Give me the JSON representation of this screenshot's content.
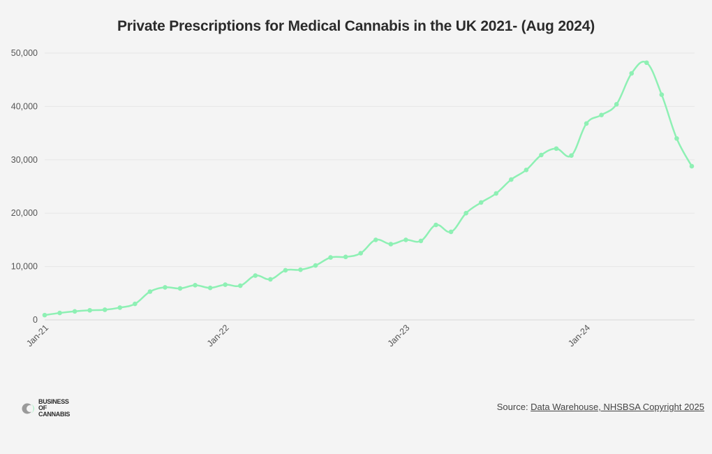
{
  "chart_data": {
    "type": "line",
    "title": "Private Prescriptions for Medical Cannabis in the UK 2021- (Aug 2024)",
    "xlabel": "",
    "ylabel": "",
    "ylim": [
      0,
      50000
    ],
    "yticks": [
      0,
      10000,
      20000,
      30000,
      40000,
      50000
    ],
    "ytick_labels": [
      "0",
      "10,000",
      "20,000",
      "30,000",
      "40,000",
      "50,000"
    ],
    "xtick_labels": [
      "Jan-21",
      "Jan-22",
      "Jan-23",
      "Jan-24"
    ],
    "xtick_indices": [
      0,
      12,
      24,
      36
    ],
    "series": [
      {
        "name": "Private Prescriptions",
        "color": "#8ef0b4",
        "categories": [
          "Jan-21",
          "Feb-21",
          "Mar-21",
          "Apr-21",
          "May-21",
          "Jun-21",
          "Jul-21",
          "Aug-21",
          "Sep-21",
          "Oct-21",
          "Nov-21",
          "Dec-21",
          "Jan-22",
          "Feb-22",
          "Mar-22",
          "Apr-22",
          "May-22",
          "Jun-22",
          "Jul-22",
          "Aug-22",
          "Sep-22",
          "Oct-22",
          "Nov-22",
          "Dec-22",
          "Jan-23",
          "Feb-23",
          "Mar-23",
          "Apr-23",
          "May-23",
          "Jun-23",
          "Jul-23",
          "Aug-23",
          "Sep-23",
          "Oct-23",
          "Nov-23",
          "Dec-23",
          "Jan-24",
          "Feb-24",
          "Mar-24",
          "Apr-24",
          "May-24",
          "Jun-24",
          "Jul-24",
          "Aug-24"
        ],
        "values": [
          900,
          1300,
          1600,
          1800,
          1900,
          2300,
          3000,
          5300,
          6100,
          5900,
          6500,
          6000,
          6600,
          6400,
          8300,
          7600,
          9300,
          9400,
          10200,
          11700,
          11800,
          12500,
          15000,
          14200,
          15000,
          14800,
          17800,
          16500,
          20000,
          22000,
          23700,
          26300,
          28100,
          30900,
          32100,
          30800,
          36800,
          38400,
          40400,
          46200,
          48200,
          42200,
          34000,
          28800
        ]
      }
    ]
  },
  "footer": {
    "logo_line1": "BUSINESS",
    "logo_line2": "OF CANNABIS",
    "source_prefix": "Source: ",
    "source_link": "Data Warehouse, NHSBSA Copyright 2025"
  }
}
